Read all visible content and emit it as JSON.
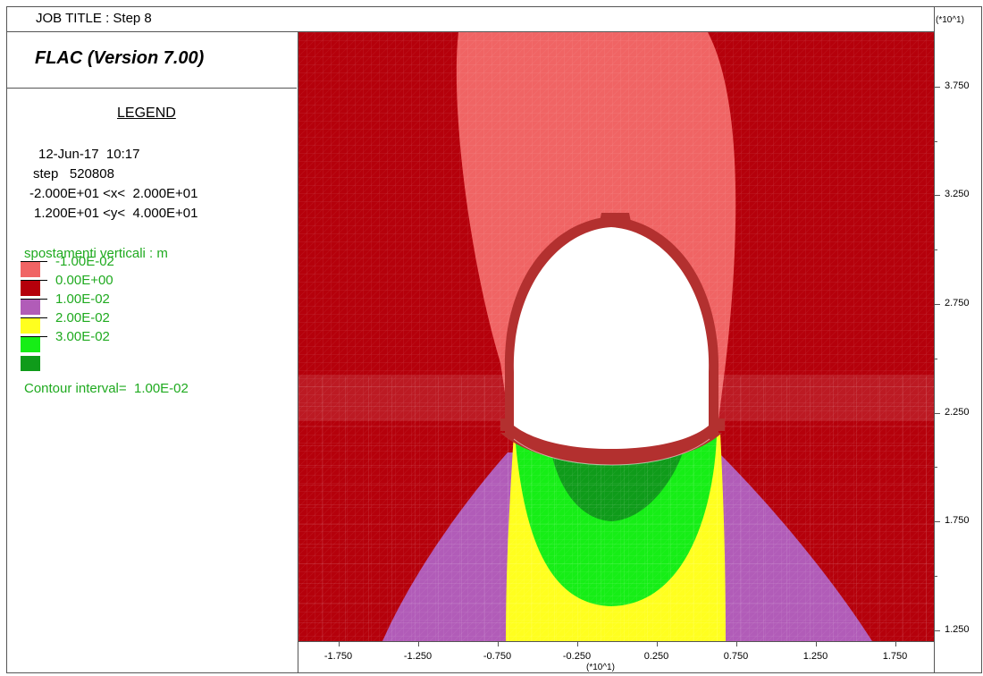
{
  "header": {
    "job_title": "JOB TITLE : Step 8"
  },
  "panel": {
    "program": "FLAC (Version 7.00)",
    "legend_heading": "LEGEND",
    "info_lines": [
      "12-Jun-17  10:17",
      "step   520808",
      "-2.000E+01 <x<  2.000E+01",
      "1.200E+01 <y<  4.000E+01"
    ],
    "variable_title": "spostamenti verticali : m",
    "contour_interval": "Contour interval=  1.00E-02"
  },
  "legend": [
    {
      "label": "-1.00E-02",
      "color": "#f06464"
    },
    {
      "label": "0.00E+00",
      "color": "#b5000b"
    },
    {
      "label": "1.00E-02",
      "color": "#b15cb8"
    },
    {
      "label": "2.00E-02",
      "color": "#ffff1f"
    },
    {
      "label": "3.00E-02",
      "color": "#16ee16"
    },
    {
      "label": "",
      "color": "#0f9b1a"
    }
  ],
  "chart_data": {
    "type": "heatmap",
    "title": "spostamenti verticali : m",
    "contour_levels": [
      -0.01,
      0.0,
      0.01,
      0.02,
      0.03
    ],
    "contour_interval": 0.01,
    "xlim": [
      -2.0,
      2.0
    ],
    "ylim": [
      1.2,
      4.0
    ],
    "x_axis_multiplier": "(*10^1)",
    "y_axis_multiplier": "(*10^1)",
    "x_ticks": [
      "-1.750",
      "-1.250",
      "-0.750",
      "-0.250",
      "0.250",
      "0.750",
      "1.250",
      "1.750"
    ],
    "x_tick_values": [
      -1.75,
      -1.25,
      -0.75,
      -0.25,
      0.25,
      0.75,
      1.25,
      1.75
    ],
    "y_ticks": [
      "3.750",
      "3.250",
      "2.750",
      "2.250",
      "1.750",
      "1.250"
    ],
    "y_tick_values": [
      3.75,
      3.25,
      2.75,
      2.25,
      1.75,
      1.25
    ],
    "colors": {
      "background": "#b5000b",
      "crown_zone": "#f06464",
      "floor_purple": "#b15cb8",
      "floor_yellow": "#ffff1f",
      "floor_green": "#16ee16",
      "floor_dark_green": "#0f9b1a",
      "lining": "#b3302f"
    }
  }
}
